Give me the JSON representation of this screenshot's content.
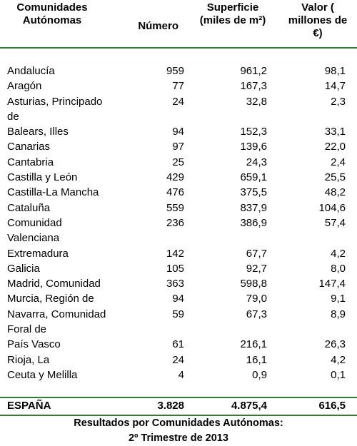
{
  "table": {
    "header": [
      "Comunidades Autónomas",
      "Número",
      "Superficie (miles de m²)",
      "Valor ( millones de €)"
    ],
    "rows": [
      [
        "Andalucía",
        "959",
        "961,2",
        "98,1"
      ],
      [
        "Aragón",
        "77",
        "167,3",
        "14,7"
      ],
      [
        "Asturias, Principado de",
        "24",
        "32,8",
        "2,3"
      ],
      [
        "Balears, Illes",
        "94",
        "152,3",
        "33,1"
      ],
      [
        "Canarias",
        "97",
        "139,6",
        "22,0"
      ],
      [
        "Cantabria",
        "25",
        "24,3",
        "2,4"
      ],
      [
        "Castilla y León",
        "429",
        "659,1",
        "25,5"
      ],
      [
        "Castilla-La Mancha",
        "476",
        "375,5",
        "48,2"
      ],
      [
        "Cataluña",
        "559",
        "837,9",
        "104,6"
      ],
      [
        "Comunidad Valenciana",
        "236",
        "386,9",
        "57,4"
      ],
      [
        "Extremadura",
        "142",
        "67,7",
        "4,2"
      ],
      [
        "Galicia",
        "105",
        "92,7",
        "8,0"
      ],
      [
        "Madrid, Comunidad",
        "363",
        "598,8",
        "147,4"
      ],
      [
        "Murcia, Región de",
        "94",
        "79,0",
        "9,1"
      ],
      [
        "Navarra, Comunidad Foral de",
        "59",
        "67,3",
        "8,9"
      ],
      [
        "País Vasco",
        "61",
        "216,1",
        "26,3"
      ],
      [
        "Rioja, La",
        "24",
        "16,1",
        "4,2"
      ],
      [
        "Ceuta y Melilla",
        "4",
        "0,9",
        "0,1"
      ]
    ],
    "total": [
      "ESPAÑA",
      "3.828",
      "4.875,4",
      "616,5"
    ]
  },
  "caption": [
    "Resultados por Comunidades Autónomas:",
    "2º Trimestre de 2013"
  ]
}
